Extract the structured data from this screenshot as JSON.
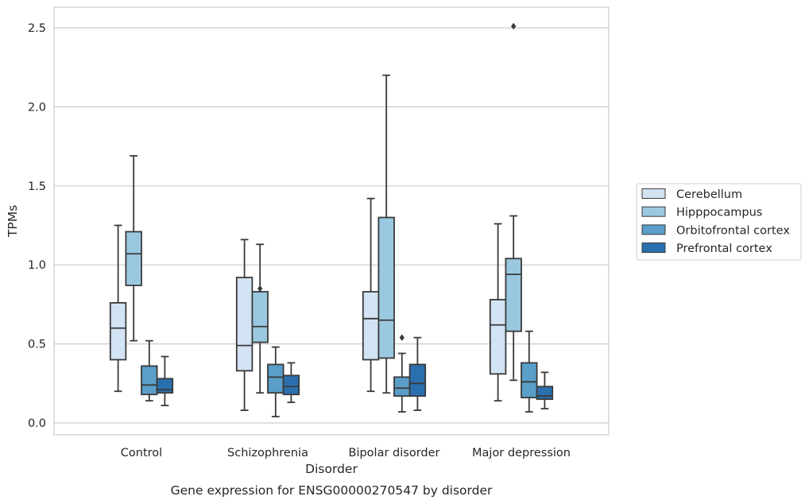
{
  "chart_data": {
    "type": "box",
    "title": "Gene expression for ENSG00000270547 by disorder",
    "xlabel": "Disorder",
    "ylabel": "TPMs",
    "categories": [
      "Control",
      "Schizophrenia",
      "Bipolar disorder",
      "Major depression"
    ],
    "yticks": [
      "0.0",
      "0.5",
      "1.0",
      "1.5",
      "2.0",
      "2.5"
    ],
    "ylim": [
      -0.08,
      2.64
    ],
    "grid": "horizontal",
    "legend_position": "right",
    "series": [
      {
        "name": "Cerebellum",
        "color": "#d2e3f3",
        "boxes": [
          {
            "whisker_low": 0.2,
            "q1": 0.4,
            "median": 0.6,
            "q3": 0.76,
            "whisker_high": 1.25,
            "outliers": []
          },
          {
            "whisker_low": 0.08,
            "q1": 0.33,
            "median": 0.49,
            "q3": 0.92,
            "whisker_high": 1.16,
            "outliers": []
          },
          {
            "whisker_low": 0.2,
            "q1": 0.4,
            "median": 0.66,
            "q3": 0.83,
            "whisker_high": 1.42,
            "outliers": []
          },
          {
            "whisker_low": 0.14,
            "q1": 0.31,
            "median": 0.62,
            "q3": 0.78,
            "whisker_high": 1.26,
            "outliers": []
          }
        ]
      },
      {
        "name": "Hipppocampus",
        "color": "#9ac8e0",
        "boxes": [
          {
            "whisker_low": 0.52,
            "q1": 0.87,
            "median": 1.07,
            "q3": 1.21,
            "whisker_high": 1.69,
            "outliers": []
          },
          {
            "whisker_low": 0.19,
            "q1": 0.51,
            "median": 0.61,
            "q3": 0.83,
            "whisker_high": 1.13,
            "outliers": [
              0.85
            ]
          },
          {
            "whisker_low": 0.19,
            "q1": 0.41,
            "median": 0.65,
            "q3": 1.3,
            "whisker_high": 2.2,
            "outliers": []
          },
          {
            "whisker_low": 0.27,
            "q1": 0.58,
            "median": 0.94,
            "q3": 1.04,
            "whisker_high": 1.31,
            "outliers": [
              2.51
            ]
          }
        ]
      },
      {
        "name": "Orbitofrontal cortex",
        "color": "#5a9ec9",
        "boxes": [
          {
            "whisker_low": 0.14,
            "q1": 0.18,
            "median": 0.24,
            "q3": 0.36,
            "whisker_high": 0.52,
            "outliers": []
          },
          {
            "whisker_low": 0.04,
            "q1": 0.19,
            "median": 0.29,
            "q3": 0.37,
            "whisker_high": 0.48,
            "outliers": []
          },
          {
            "whisker_low": 0.07,
            "q1": 0.17,
            "median": 0.22,
            "q3": 0.29,
            "whisker_high": 0.44,
            "outliers": [
              0.54
            ]
          },
          {
            "whisker_low": 0.07,
            "q1": 0.16,
            "median": 0.26,
            "q3": 0.38,
            "whisker_high": 0.58,
            "outliers": []
          }
        ]
      },
      {
        "name": "Prefrontal cortex",
        "color": "#2a6fae",
        "boxes": [
          {
            "whisker_low": 0.11,
            "q1": 0.19,
            "median": 0.21,
            "q3": 0.28,
            "whisker_high": 0.42,
            "outliers": []
          },
          {
            "whisker_low": 0.13,
            "q1": 0.18,
            "median": 0.23,
            "q3": 0.3,
            "whisker_high": 0.38,
            "outliers": []
          },
          {
            "whisker_low": 0.08,
            "q1": 0.17,
            "median": 0.25,
            "q3": 0.37,
            "whisker_high": 0.54,
            "outliers": []
          },
          {
            "whisker_low": 0.09,
            "q1": 0.15,
            "median": 0.17,
            "q3": 0.23,
            "whisker_high": 0.32,
            "outliers": []
          }
        ]
      }
    ]
  }
}
